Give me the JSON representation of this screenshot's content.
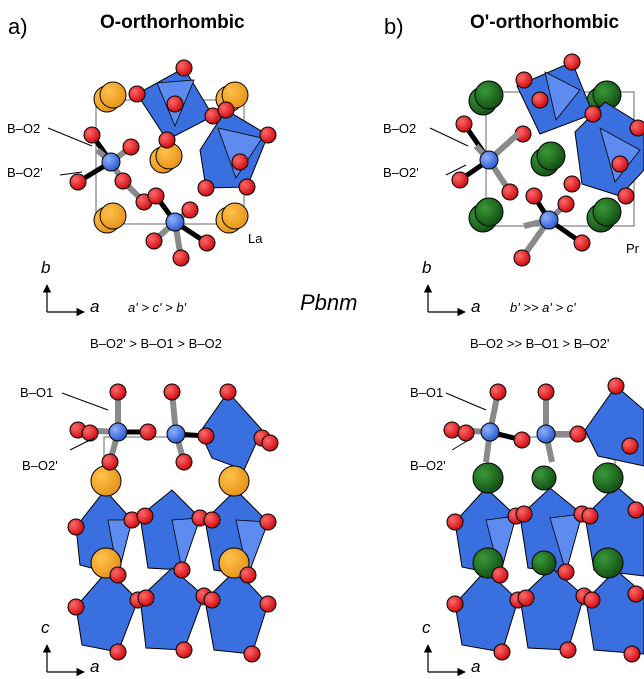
{
  "panels": {
    "a": {
      "letter": "a)",
      "title": "O-orthorhombic",
      "atom_label": "La",
      "atom_color": "#f0a020",
      "bond_labels_top": [
        "B–O2",
        "B–O2'"
      ],
      "bond_labels_bottom": [
        "B–O1",
        "B–O2'"
      ],
      "lattice_relation": "a' > c' > b'",
      "bond_relation": "B–O2' > B–O1 > B–O2",
      "axes_top": {
        "vertical": "b",
        "horizontal": "a"
      },
      "axes_bottom": {
        "vertical": "c",
        "horizontal": "a"
      }
    },
    "b": {
      "letter": "b)",
      "title": "O'-orthorhombic",
      "atom_label": "Pr",
      "atom_color": "#1f6b1f",
      "bond_labels_top": [
        "B–O2",
        "B–O2'"
      ],
      "bond_labels_bottom": [
        "B–O1",
        "B–O2'"
      ],
      "lattice_relation": "b' >> a' > c'",
      "bond_relation": "B–O2 >> B–O1 > B–O2'",
      "axes_top": {
        "vertical": "b",
        "horizontal": "a"
      },
      "axes_bottom": {
        "vertical": "c",
        "horizontal": "a"
      }
    }
  },
  "space_group": "Pbnm",
  "colors": {
    "octahedron": "#3a6fe0",
    "oxygen": "#e8141c",
    "b_site": "#3a6fe0",
    "bond_gray": "#8a8a8a",
    "bond_black": "#000000"
  }
}
